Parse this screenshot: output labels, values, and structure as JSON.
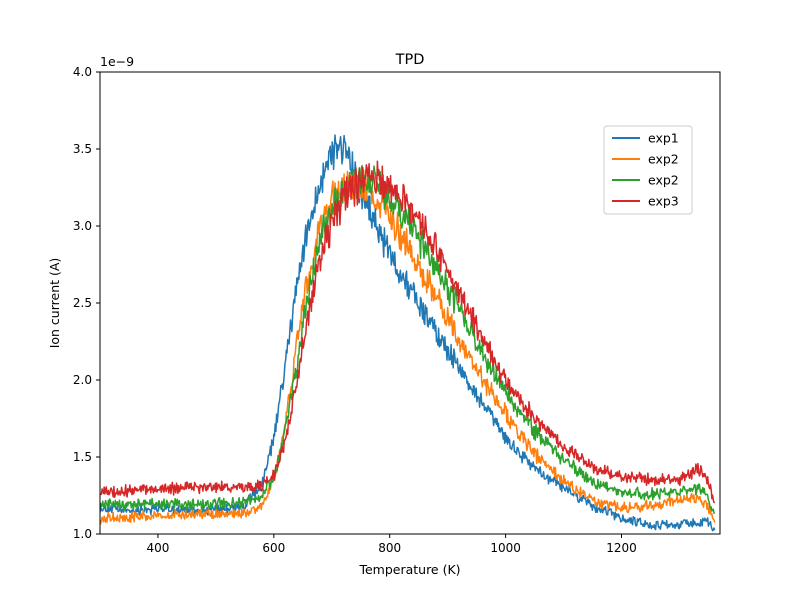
{
  "chart_data": {
    "type": "line",
    "title": "TPD",
    "xlabel": "Temperature (K)",
    "ylabel": "Ion current (A)",
    "y_offset_label": "1e−9",
    "xlim": [
      300,
      1370
    ],
    "ylim": [
      1.0,
      4.0
    ],
    "xticks": [
      400,
      600,
      800,
      1000,
      1200
    ],
    "yticks": [
      1.0,
      1.5,
      2.0,
      2.5,
      3.0,
      3.5,
      4.0
    ],
    "xtick_labels": [
      "400",
      "600",
      "800",
      "1000",
      "1200"
    ],
    "ytick_labels": [
      "1.0",
      "1.5",
      "2.0",
      "2.5",
      "3.0",
      "3.5",
      "4.0"
    ],
    "grid": false,
    "legend_position": "upper-right",
    "series": [
      {
        "name": "exp1",
        "color": "#1f77b4",
        "x": [
          300,
          350,
          400,
          450,
          500,
          550,
          580,
          600,
          620,
          640,
          660,
          680,
          700,
          715,
          730,
          750,
          780,
          800,
          850,
          900,
          950,
          1000,
          1050,
          1100,
          1150,
          1200,
          1250,
          1300,
          1330,
          1345,
          1360
        ],
        "y": [
          1.17,
          1.15,
          1.17,
          1.15,
          1.16,
          1.18,
          1.33,
          1.62,
          2.1,
          2.62,
          3.0,
          3.3,
          3.47,
          3.55,
          3.45,
          3.2,
          2.98,
          2.82,
          2.5,
          2.2,
          1.9,
          1.62,
          1.43,
          1.3,
          1.18,
          1.1,
          1.06,
          1.06,
          1.07,
          1.09,
          1.02
        ]
      },
      {
        "name": "exp2",
        "color": "#ff7f0e",
        "x": [
          300,
          350,
          400,
          450,
          500,
          550,
          580,
          600,
          620,
          640,
          660,
          680,
          700,
          720,
          740,
          760,
          780,
          800,
          850,
          900,
          950,
          1000,
          1050,
          1100,
          1150,
          1200,
          1250,
          1300,
          1330,
          1345,
          1360
        ],
        "y": [
          1.1,
          1.11,
          1.12,
          1.12,
          1.13,
          1.13,
          1.18,
          1.35,
          1.72,
          2.25,
          2.68,
          3.0,
          3.17,
          3.25,
          3.27,
          3.25,
          3.16,
          3.07,
          2.75,
          2.4,
          2.07,
          1.78,
          1.52,
          1.34,
          1.22,
          1.17,
          1.18,
          1.22,
          1.23,
          1.2,
          1.1
        ]
      },
      {
        "name": "exp2",
        "color": "#2ca02c",
        "x": [
          300,
          350,
          400,
          450,
          500,
          550,
          580,
          600,
          620,
          640,
          660,
          680,
          700,
          720,
          740,
          760,
          780,
          800,
          850,
          900,
          950,
          1000,
          1050,
          1100,
          1150,
          1200,
          1250,
          1300,
          1330,
          1345,
          1360
        ],
        "y": [
          1.2,
          1.19,
          1.2,
          1.19,
          1.2,
          1.21,
          1.25,
          1.37,
          1.67,
          2.12,
          2.58,
          2.93,
          3.13,
          3.22,
          3.27,
          3.3,
          3.27,
          3.2,
          2.92,
          2.6,
          2.25,
          1.92,
          1.67,
          1.48,
          1.34,
          1.27,
          1.26,
          1.28,
          1.3,
          1.28,
          1.12
        ]
      },
      {
        "name": "exp3",
        "color": "#d62728",
        "x": [
          300,
          350,
          400,
          450,
          500,
          550,
          580,
          600,
          620,
          640,
          660,
          680,
          700,
          720,
          740,
          760,
          780,
          800,
          850,
          900,
          950,
          1000,
          1050,
          1100,
          1150,
          1200,
          1250,
          1300,
          1330,
          1345,
          1360
        ],
        "y": [
          1.28,
          1.28,
          1.29,
          1.3,
          1.3,
          1.3,
          1.31,
          1.38,
          1.6,
          2.0,
          2.43,
          2.78,
          3.02,
          3.18,
          3.26,
          3.3,
          3.32,
          3.27,
          3.05,
          2.72,
          2.35,
          2.0,
          1.75,
          1.56,
          1.44,
          1.37,
          1.35,
          1.36,
          1.42,
          1.38,
          1.22
        ]
      }
    ]
  }
}
